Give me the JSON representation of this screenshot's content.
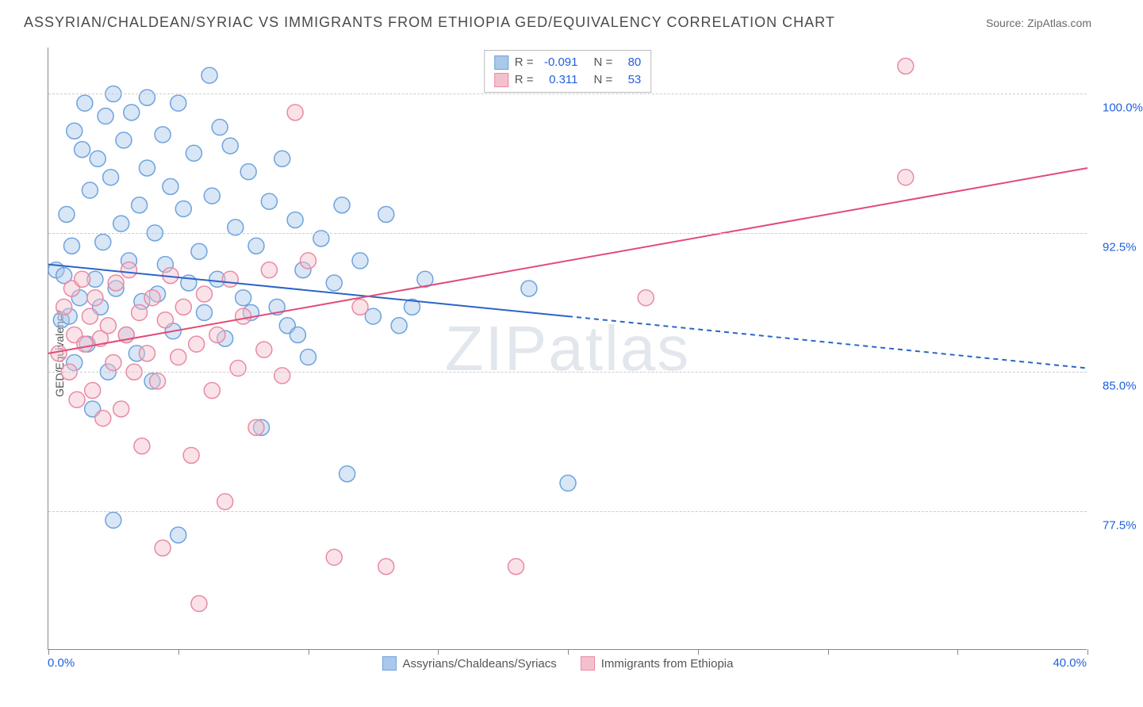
{
  "header": {
    "title": "ASSYRIAN/CHALDEAN/SYRIAC VS IMMIGRANTS FROM ETHIOPIA GED/EQUIVALENCY CORRELATION CHART",
    "source": "Source: ZipAtlas.com"
  },
  "chart": {
    "type": "scatter-with-regression",
    "ylabel": "GED/Equivalency",
    "xlim": [
      0,
      40
    ],
    "ylim": [
      70,
      102.5
    ],
    "x_ticks": [
      0,
      5,
      10,
      15,
      20,
      25,
      30,
      35,
      40
    ],
    "x_tick_labels": {
      "0": "0.0%",
      "40": "40.0%"
    },
    "y_gridlines": [
      77.5,
      85.0,
      92.5,
      100.0
    ],
    "y_tick_labels": [
      "77.5%",
      "85.0%",
      "92.5%",
      "100.0%"
    ],
    "background_color": "#ffffff",
    "grid_color": "#cccccc",
    "axis_color": "#888888",
    "tick_label_color": "#2060e0",
    "marker_radius": 10,
    "marker_opacity": 0.45,
    "line_width": 2,
    "watermark": "ZIPatlas",
    "series": [
      {
        "name": "Assyrians/Chaldeans/Syriacs",
        "color_fill": "#a9c8ec",
        "color_stroke": "#6fa3dd",
        "line_color": "#2b65c7",
        "R": "-0.091",
        "N": "80",
        "regression": {
          "x1": 0,
          "y1": 90.8,
          "x2": 40,
          "y2": 85.2,
          "solid_until_x": 20
        },
        "points": [
          [
            0.3,
            90.5
          ],
          [
            0.5,
            87.8
          ],
          [
            0.6,
            90.2
          ],
          [
            0.7,
            93.5
          ],
          [
            0.8,
            88.0
          ],
          [
            0.9,
            91.8
          ],
          [
            1.0,
            85.5
          ],
          [
            1.0,
            98.0
          ],
          [
            1.2,
            89.0
          ],
          [
            1.3,
            97.0
          ],
          [
            1.4,
            99.5
          ],
          [
            1.5,
            86.5
          ],
          [
            1.6,
            94.8
          ],
          [
            1.7,
            83.0
          ],
          [
            1.8,
            90.0
          ],
          [
            1.9,
            96.5
          ],
          [
            2.0,
            88.5
          ],
          [
            2.1,
            92.0
          ],
          [
            2.2,
            98.8
          ],
          [
            2.3,
            85.0
          ],
          [
            2.4,
            95.5
          ],
          [
            2.5,
            77.0
          ],
          [
            2.5,
            100.0
          ],
          [
            2.6,
            89.5
          ],
          [
            2.8,
            93.0
          ],
          [
            2.9,
            97.5
          ],
          [
            3.0,
            87.0
          ],
          [
            3.1,
            91.0
          ],
          [
            3.2,
            99.0
          ],
          [
            3.4,
            86.0
          ],
          [
            3.5,
            94.0
          ],
          [
            3.6,
            88.8
          ],
          [
            3.8,
            96.0
          ],
          [
            3.8,
            99.8
          ],
          [
            4.0,
            84.5
          ],
          [
            4.1,
            92.5
          ],
          [
            4.2,
            89.2
          ],
          [
            4.4,
            97.8
          ],
          [
            4.5,
            90.8
          ],
          [
            4.7,
            95.0
          ],
          [
            4.8,
            87.2
          ],
          [
            5.0,
            99.5
          ],
          [
            5.0,
            76.2
          ],
          [
            5.2,
            93.8
          ],
          [
            5.4,
            89.8
          ],
          [
            5.6,
            96.8
          ],
          [
            5.8,
            91.5
          ],
          [
            6.0,
            88.2
          ],
          [
            6.2,
            101.0
          ],
          [
            6.3,
            94.5
          ],
          [
            6.5,
            90.0
          ],
          [
            6.6,
            98.2
          ],
          [
            6.8,
            86.8
          ],
          [
            7.0,
            97.2
          ],
          [
            7.2,
            92.8
          ],
          [
            7.5,
            89.0
          ],
          [
            7.7,
            95.8
          ],
          [
            7.8,
            88.2
          ],
          [
            8.0,
            91.8
          ],
          [
            8.2,
            82.0
          ],
          [
            8.5,
            94.2
          ],
          [
            8.8,
            88.5
          ],
          [
            9.0,
            96.5
          ],
          [
            9.2,
            87.5
          ],
          [
            9.5,
            93.2
          ],
          [
            9.6,
            87.0
          ],
          [
            9.8,
            90.5
          ],
          [
            10.0,
            85.8
          ],
          [
            10.5,
            92.2
          ],
          [
            11.0,
            89.8
          ],
          [
            11.3,
            94.0
          ],
          [
            11.5,
            79.5
          ],
          [
            12.0,
            91.0
          ],
          [
            12.5,
            88.0
          ],
          [
            13.0,
            93.5
          ],
          [
            13.5,
            87.5
          ],
          [
            14.0,
            88.5
          ],
          [
            14.5,
            90.0
          ],
          [
            18.5,
            89.5
          ],
          [
            20.0,
            79.0
          ]
        ]
      },
      {
        "name": "Immigrants from Ethiopia",
        "color_fill": "#f5c0cd",
        "color_stroke": "#e98aa4",
        "line_color": "#e14b77",
        "R": "0.311",
        "N": "53",
        "regression": {
          "x1": 0,
          "y1": 86.0,
          "x2": 40,
          "y2": 96.0,
          "solid_until_x": 40
        },
        "points": [
          [
            0.4,
            86.0
          ],
          [
            0.6,
            88.5
          ],
          [
            0.8,
            85.0
          ],
          [
            0.9,
            89.5
          ],
          [
            1.0,
            87.0
          ],
          [
            1.1,
            83.5
          ],
          [
            1.3,
            90.0
          ],
          [
            1.4,
            86.5
          ],
          [
            1.6,
            88.0
          ],
          [
            1.7,
            84.0
          ],
          [
            1.8,
            89.0
          ],
          [
            2.0,
            86.8
          ],
          [
            2.1,
            82.5
          ],
          [
            2.3,
            87.5
          ],
          [
            2.5,
            85.5
          ],
          [
            2.6,
            89.8
          ],
          [
            2.8,
            83.0
          ],
          [
            3.0,
            87.0
          ],
          [
            3.1,
            90.5
          ],
          [
            3.3,
            85.0
          ],
          [
            3.5,
            88.2
          ],
          [
            3.6,
            81.0
          ],
          [
            3.8,
            86.0
          ],
          [
            4.0,
            89.0
          ],
          [
            4.2,
            84.5
          ],
          [
            4.4,
            75.5
          ],
          [
            4.5,
            87.8
          ],
          [
            4.7,
            90.2
          ],
          [
            5.0,
            85.8
          ],
          [
            5.2,
            88.5
          ],
          [
            5.5,
            80.5
          ],
          [
            5.7,
            86.5
          ],
          [
            5.8,
            72.5
          ],
          [
            6.0,
            89.2
          ],
          [
            6.3,
            84.0
          ],
          [
            6.5,
            87.0
          ],
          [
            6.8,
            78.0
          ],
          [
            7.0,
            90.0
          ],
          [
            7.3,
            85.2
          ],
          [
            7.5,
            88.0
          ],
          [
            8.0,
            82.0
          ],
          [
            8.3,
            86.2
          ],
          [
            8.5,
            90.5
          ],
          [
            9.0,
            84.8
          ],
          [
            9.5,
            99.0
          ],
          [
            10.0,
            91.0
          ],
          [
            11.0,
            75.0
          ],
          [
            12.0,
            88.5
          ],
          [
            13.0,
            74.5
          ],
          [
            18.0,
            74.5
          ],
          [
            23.0,
            89.0
          ],
          [
            33.0,
            101.5
          ],
          [
            33.0,
            95.5
          ]
        ]
      }
    ],
    "bottom_legend": [
      {
        "label": "Assyrians/Chaldeans/Syriacs",
        "fill": "#a9c8ec",
        "stroke": "#6fa3dd"
      },
      {
        "label": "Immigrants from Ethiopia",
        "fill": "#f5c0cd",
        "stroke": "#e98aa4"
      }
    ]
  }
}
